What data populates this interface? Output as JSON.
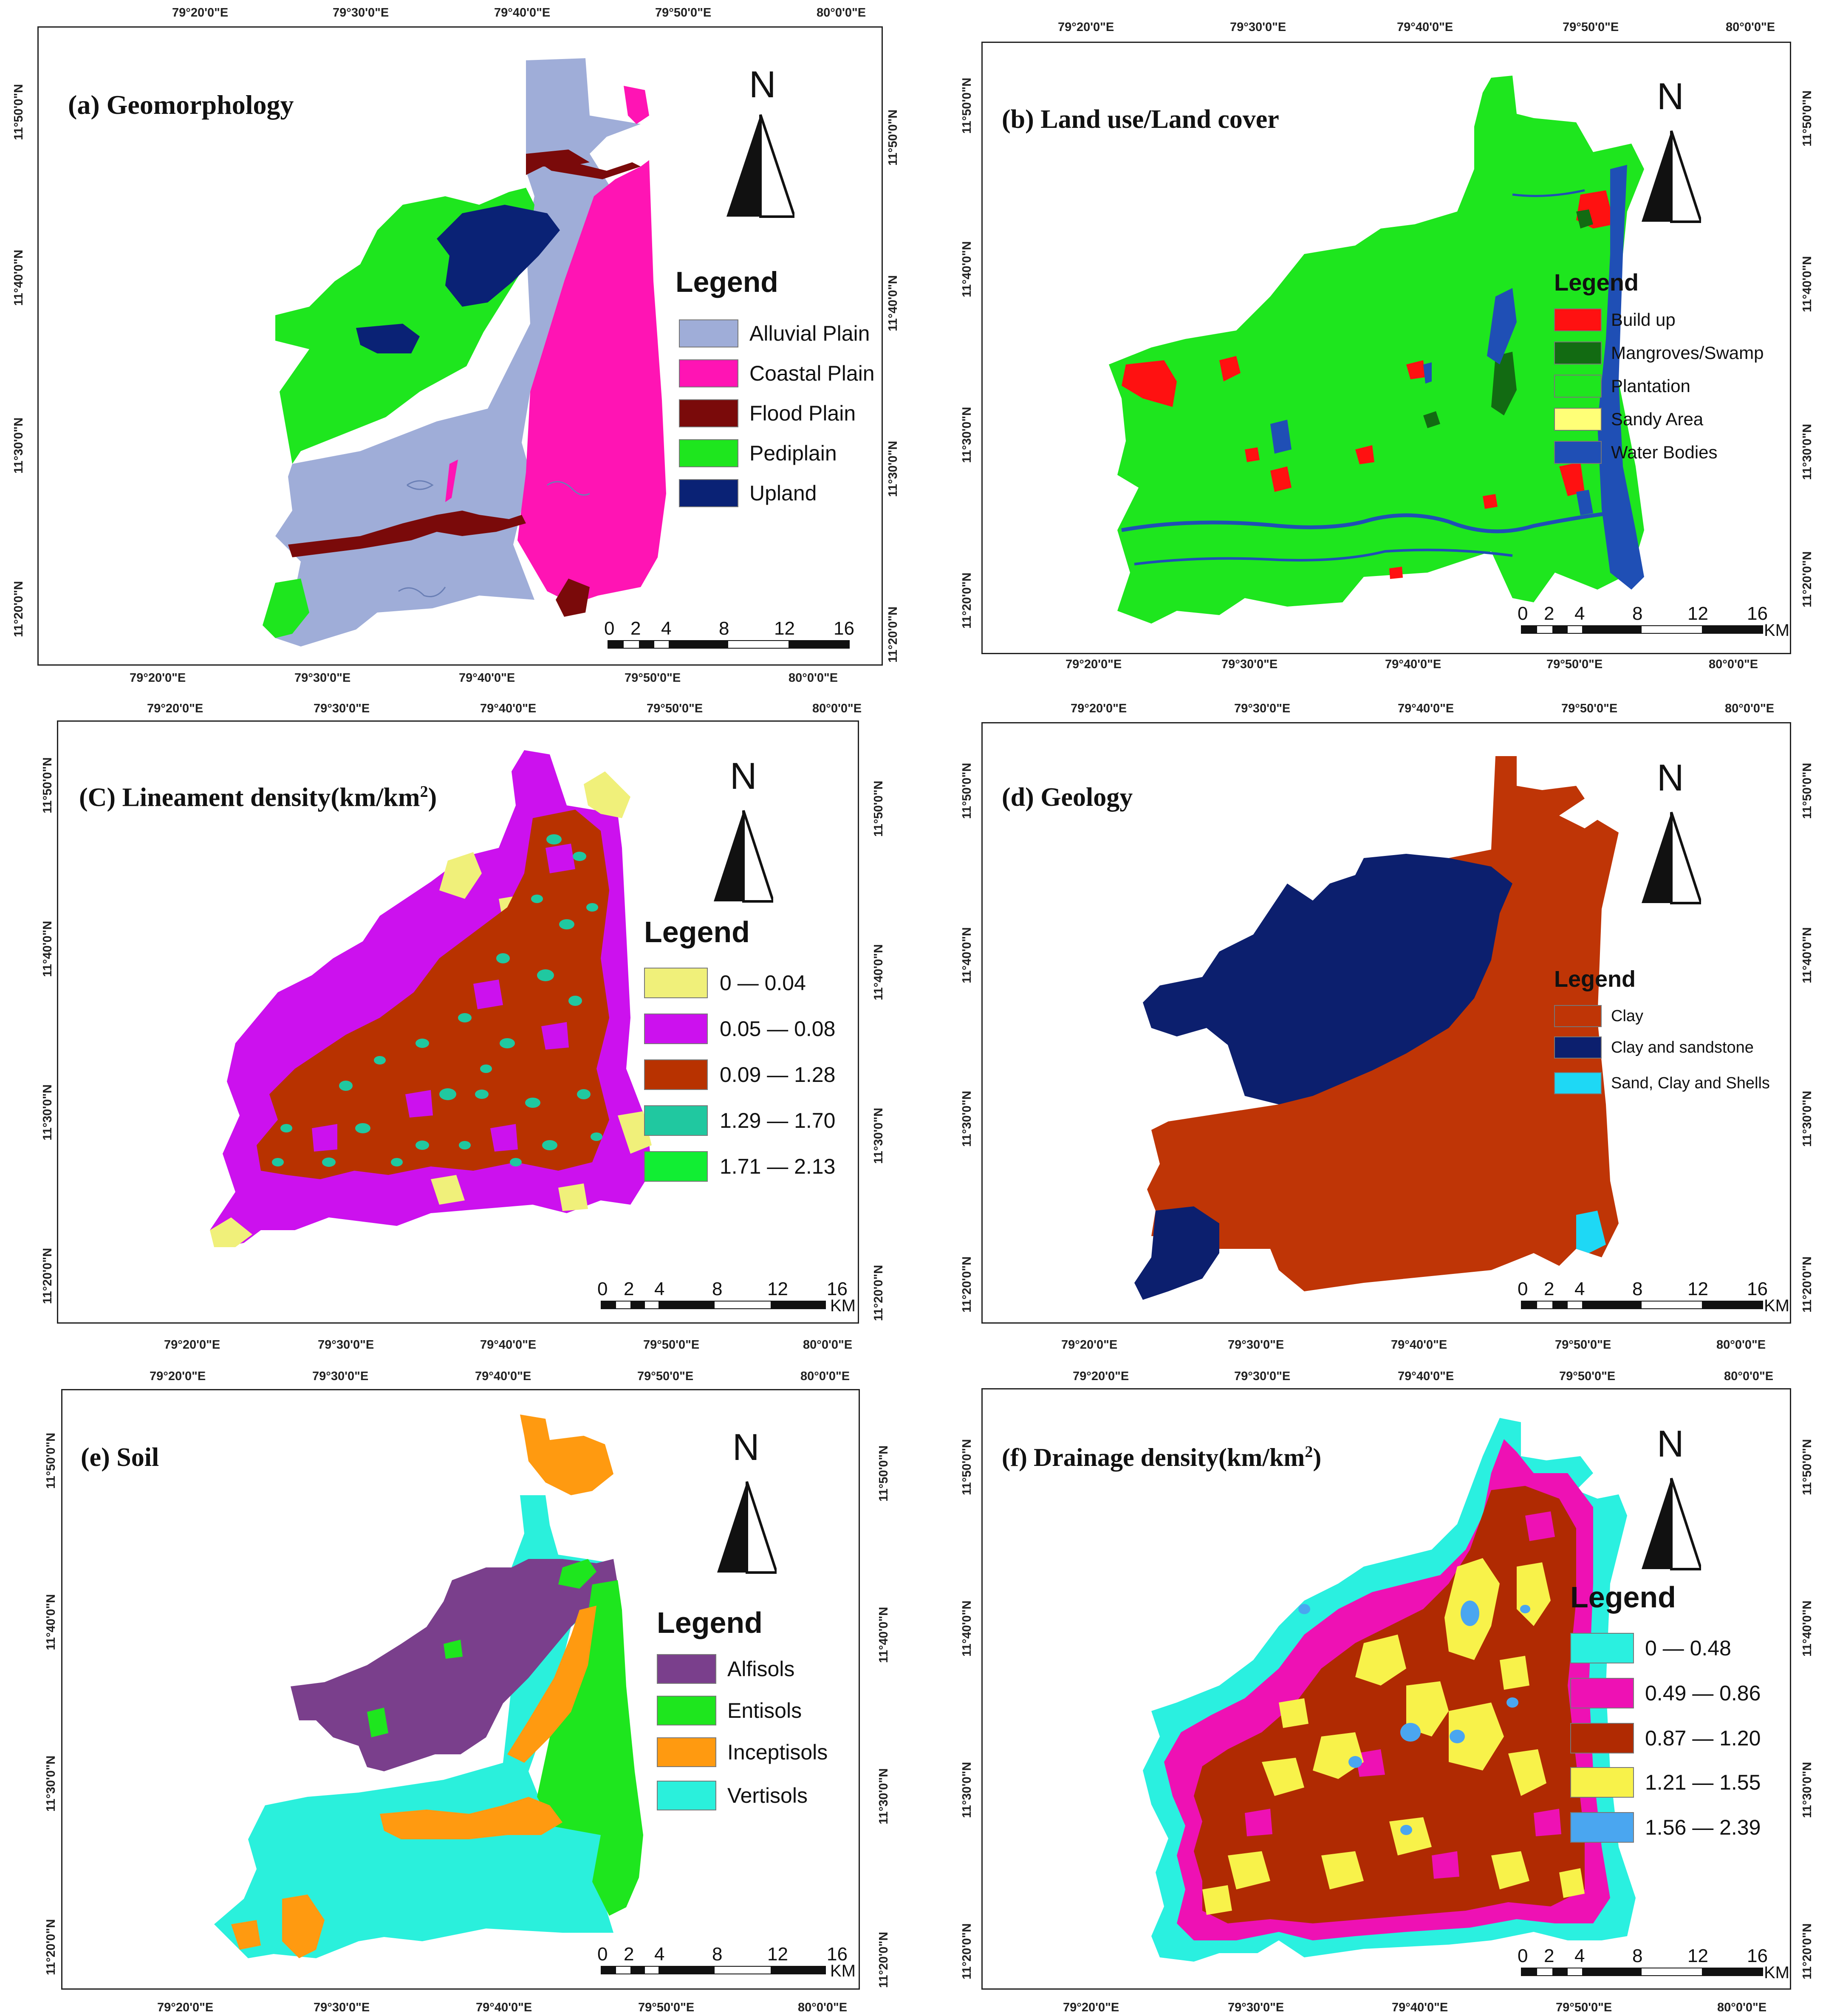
{
  "coords": {
    "lon": [
      "79°20'0\"E",
      "79°30'0\"E",
      "79°40'0\"E",
      "79°50'0\"E",
      "80°0'0\"E"
    ],
    "lat": [
      "11°20'0\"N",
      "11°30'0\"N",
      "11°40'0\"N",
      "11°50'0\"N"
    ]
  },
  "north_letter": "N",
  "scale": {
    "ticks": [
      "0",
      "2",
      "4",
      "8",
      "12",
      "16"
    ],
    "unit": "KM"
  },
  "panels": [
    {
      "id": "a",
      "title": "(a) Geomorphology",
      "legend_title": "Legend",
      "legend": [
        {
          "label": "Alluvial Plain",
          "color": "#9fadd8"
        },
        {
          "label": "Coastal Plain",
          "color": "#ff14b4"
        },
        {
          "label": "Flood Plain",
          "color": "#7a0a0a"
        },
        {
          "label": "Pediplain",
          "color": "#1ee61e"
        },
        {
          "label": "Upland",
          "color": "#0a2275"
        }
      ]
    },
    {
      "id": "b",
      "title": "(b) Land use/Land cover",
      "legend_title": "Legend",
      "legend": [
        {
          "label": "Build up",
          "color": "#ff1111"
        },
        {
          "label": "Mangroves/Swamp",
          "color": "#126b12"
        },
        {
          "label": "Plantation",
          "color": "#1ee61e"
        },
        {
          "label": "Sandy Area",
          "color": "#ffff77"
        },
        {
          "label": "Water Bodies",
          "color": "#1f4fb5"
        }
      ]
    },
    {
      "id": "c",
      "title_main": "(C) Lineament density(km/km",
      "title_sup": "2",
      "title_end": ")",
      "legend_title": "Legend",
      "legend": [
        {
          "label": "0 — 0.04",
          "color": "#f0f07a"
        },
        {
          "label": "0.05 — 0.08",
          "color": "#cc11ee"
        },
        {
          "label": "0.09 — 1.28",
          "color": "#b83200"
        },
        {
          "label": "1.29 — 1.70",
          "color": "#20c8a0"
        },
        {
          "label": "1.71 — 2.13",
          "color": "#11ee33"
        }
      ]
    },
    {
      "id": "d",
      "title": "(d) Geology",
      "legend_title": "Legend",
      "legend": [
        {
          "label": "Clay",
          "color": "#bf3506"
        },
        {
          "label": "Clay and sandstone",
          "color": "#0c1f6e"
        },
        {
          "label": "Sand, Clay and Shells",
          "color": "#1ed8f5"
        }
      ]
    },
    {
      "id": "e",
      "title": "(e) Soil",
      "legend_title": "Legend",
      "legend": [
        {
          "label": "Alfisols",
          "color": "#7a3f8c"
        },
        {
          "label": "Entisols",
          "color": "#1ee61e"
        },
        {
          "label": "Inceptisols",
          "color": "#ff9a10"
        },
        {
          "label": "Vertisols",
          "color": "#2af0dc"
        }
      ]
    },
    {
      "id": "f",
      "title_main": "(f) Drainage density(km/km",
      "title_sup": "2",
      "title_end": ")",
      "legend_title": "Legend",
      "legend": [
        {
          "label": "0 — 0.48",
          "color": "#2af0e0"
        },
        {
          "label": "0.49 — 0.86",
          "color": "#ee11b4"
        },
        {
          "label": "0.87 — 1.20",
          "color": "#b02a02"
        },
        {
          "label": "1.21 — 1.55",
          "color": "#f8f24a"
        },
        {
          "label": "1.56 — 2.39",
          "color": "#4aa6f0"
        }
      ]
    }
  ]
}
